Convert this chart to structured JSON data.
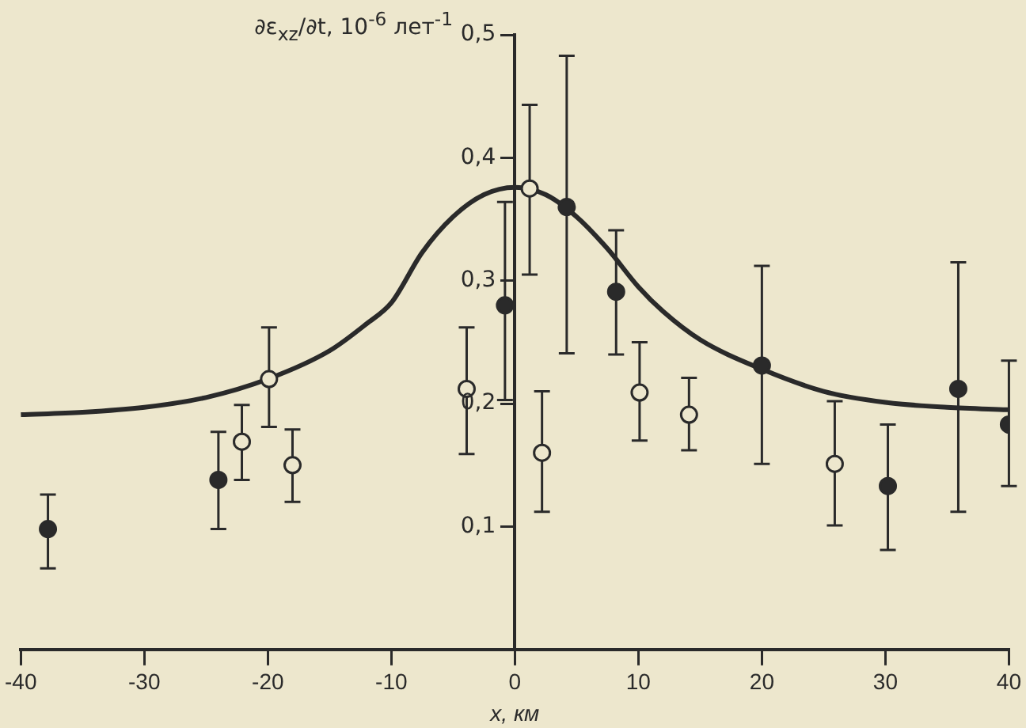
{
  "chart_data": {
    "type": "scatter",
    "xlabel": "x, км",
    "ylabel": "∂ε$_{xz}$/∂t, 10$^{-6}$ лет$^{-1}$",
    "xlim": [
      -40,
      40
    ],
    "xticks": [
      -40,
      -30,
      -20,
      -10,
      0,
      10,
      20,
      30,
      40
    ],
    "ylim": [
      0,
      0.5
    ],
    "yticks": [
      {
        "value": 0.1,
        "label": "0,1"
      },
      {
        "value": 0.2,
        "label": "0,2"
      },
      {
        "value": 0.3,
        "label": "0,3"
      },
      {
        "value": 0.4,
        "label": "0,4"
      },
      {
        "value": 0.5,
        "label": "0,5"
      }
    ],
    "grid": false,
    "legend": false,
    "marker": "circle",
    "series": [
      {
        "color": "#2a2a2a",
        "x": [
          -37.8,
          -24.0,
          -0.8,
          4.2,
          8.2,
          20.0,
          30.2,
          35.9,
          40.0
        ],
        "values": [
          0.098,
          0.138,
          0.28,
          0.36,
          0.291,
          0.231,
          0.133,
          0.212,
          0.183
        ],
        "errors": [
          [
            0.066,
            0.126
          ],
          [
            0.098,
            0.177
          ],
          [
            0.203,
            0.364
          ],
          [
            0.241,
            0.483
          ],
          [
            0.24,
            0.341
          ],
          [
            0.151,
            0.312
          ],
          [
            0.081,
            0.183
          ],
          [
            0.112,
            0.315
          ],
          [
            0.133,
            0.235
          ]
        ]
      },
      {
        "color": "#2a2a2a",
        "x": [
          -22.1,
          -19.9,
          -18.0,
          -3.9,
          1.2,
          2.2,
          10.1,
          14.1,
          25.9
        ],
        "values": [
          0.169,
          0.22,
          0.15,
          0.212,
          0.375,
          0.16,
          0.209,
          0.191,
          0.151
        ],
        "errors": [
          [
            0.138,
            0.199
          ],
          [
            0.181,
            0.262
          ],
          [
            0.12,
            0.179
          ],
          [
            0.159,
            0.262
          ],
          [
            0.305,
            0.443
          ],
          [
            0.112,
            0.21
          ],
          [
            0.17,
            0.25
          ],
          [
            0.162,
            0.221
          ],
          [
            0.101,
            0.202
          ]
        ]
      },
      {
        "type": "line",
        "color": "#2a2a2a",
        "marker": "none",
        "x": [
          -40,
          -35,
          -30,
          -25,
          -20,
          -15,
          -12,
          -10,
          -7.5,
          -5,
          -2.5,
          0,
          2.5,
          5,
          7.5,
          10,
          12,
          15,
          20,
          25,
          30,
          35,
          40
        ],
        "values": [
          0.191,
          0.193,
          0.197,
          0.205,
          0.22,
          0.243,
          0.265,
          0.282,
          0.323,
          0.352,
          0.37,
          0.376,
          0.37,
          0.352,
          0.326,
          0.295,
          0.275,
          0.252,
          0.228,
          0.21,
          0.201,
          0.197,
          0.195
        ]
      }
    ]
  }
}
